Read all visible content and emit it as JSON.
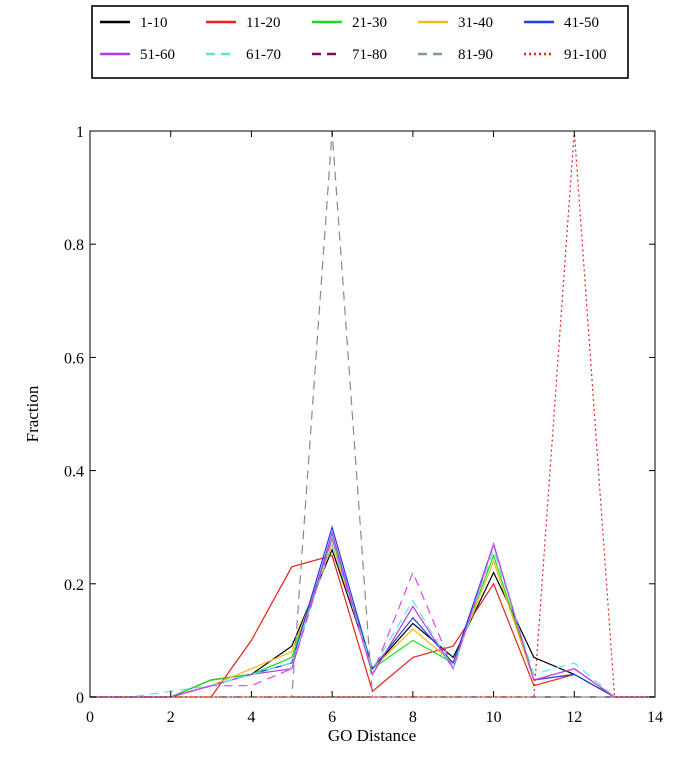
{
  "chart_data": {
    "type": "line",
    "title": "",
    "xlabel": "GO Distance",
    "ylabel": "Fraction",
    "xlim": [
      0,
      14
    ],
    "ylim": [
      0,
      1
    ],
    "xticks": [
      0,
      2,
      4,
      6,
      8,
      10,
      12,
      14
    ],
    "yticks": [
      0,
      0.2,
      0.4,
      0.6,
      0.8,
      1
    ],
    "ytick_labels": [
      "0",
      "0.2",
      "0.4",
      "0.6",
      "0.8",
      "1"
    ],
    "grid": false,
    "legend_position": "top, outside plot",
    "x": [
      0,
      1,
      2,
      3,
      4,
      5,
      6,
      7,
      8,
      9,
      10,
      11,
      12,
      13,
      14
    ],
    "series": [
      {
        "name": "1-10",
        "color": "#000000",
        "dash": "solid",
        "values": [
          0,
          0,
          0,
          0.03,
          0.04,
          0.09,
          0.26,
          0.05,
          0.13,
          0.07,
          0.22,
          0.07,
          0.04,
          0,
          0
        ]
      },
      {
        "name": "11-20",
        "color": "#e8221a",
        "dash": "solid",
        "values": [
          0,
          0,
          0,
          0,
          0.1,
          0.23,
          0.25,
          0.01,
          0.07,
          0.09,
          0.2,
          0.02,
          0.04,
          0,
          0
        ]
      },
      {
        "name": "21-30",
        "color": "#22d81e",
        "dash": "solid",
        "values": [
          0,
          0,
          0,
          0.03,
          0.04,
          0.07,
          0.28,
          0.05,
          0.1,
          0.06,
          0.25,
          0.03,
          0.04,
          0,
          0
        ]
      },
      {
        "name": "31-40",
        "color": "#f2b81b",
        "dash": "solid",
        "values": [
          0,
          0,
          0,
          0.02,
          0.05,
          0.08,
          0.27,
          0.05,
          0.12,
          0.06,
          0.24,
          0.03,
          0.05,
          0,
          0
        ]
      },
      {
        "name": "41-50",
        "color": "#1c3fe8",
        "dash": "solid",
        "values": [
          0,
          0,
          0,
          0.02,
          0.04,
          0.06,
          0.3,
          0.05,
          0.14,
          0.06,
          0.27,
          0.03,
          0.04,
          0,
          0
        ]
      },
      {
        "name": "51-60",
        "color": "#b23be8",
        "dash": "solid",
        "values": [
          0,
          0,
          0,
          0.02,
          0.04,
          0.05,
          0.29,
          0.04,
          0.16,
          0.05,
          0.27,
          0.03,
          0.05,
          0,
          0
        ]
      },
      {
        "name": "61-70",
        "color": "#58e8d6",
        "dash": "dashed",
        "values": [
          0,
          0,
          0.01,
          0.02,
          0.04,
          0.06,
          0.27,
          0.05,
          0.17,
          0.05,
          0.26,
          0.04,
          0.06,
          0,
          0
        ]
      },
      {
        "name": "71-80",
        "color": "#d84be8",
        "dash": "dashed",
        "values": [
          0,
          0,
          0,
          0.02,
          0.02,
          0.05,
          0.28,
          0.04,
          0.22,
          0.05,
          0.27,
          0.03,
          0.05,
          0,
          0
        ]
      },
      {
        "name": "81-90",
        "color": "#8a8a8a",
        "dash": "dashed",
        "values": [
          0,
          0,
          0,
          0,
          0,
          0,
          1,
          0,
          0,
          0,
          0,
          0,
          0,
          0,
          0
        ]
      },
      {
        "name": "91-100",
        "color": "#e8221a",
        "dash": "dotted",
        "values": [
          0,
          0,
          0,
          0,
          0,
          0,
          0,
          0,
          0,
          0,
          0,
          0,
          1,
          0,
          0
        ]
      }
    ]
  },
  "legend_swatches": {
    "71-80": "#7a0c5a",
    "81-90": "#7f9a9a"
  }
}
